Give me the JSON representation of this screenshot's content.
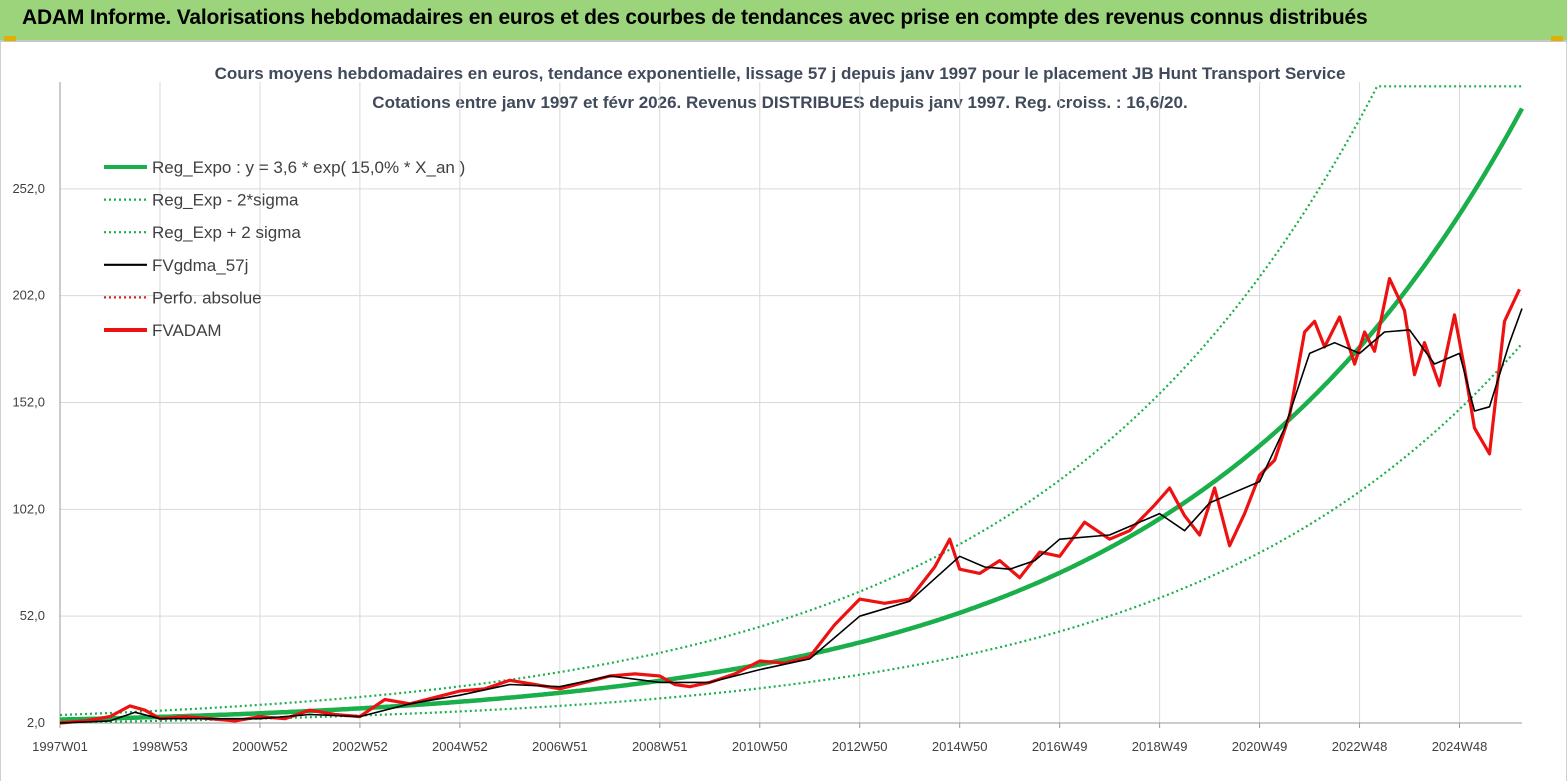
{
  "header": {
    "title": "ADAM Informe. Valorisations hebdomadaires en euros et des courbes de tendances avec prise en compte des revenus connus distribués"
  },
  "colors": {
    "banner": "#9bd47a",
    "regression": "#1aaf4b",
    "band": "#1aaf4b",
    "moving_average": "#000000",
    "perf_absolue": "#d62020",
    "fvadam": "#ee1111",
    "grid": "#d9d9d9"
  },
  "chart_data": {
    "type": "line",
    "title": "Cours moyens hebdomadaires en euros, tendance exponentielle, lissage 57 j depuis janv 1997 pour le placement JB Hunt Transport Service",
    "subtitle": "Cotations entre janv 1997 et févr 2026. Revenus DISTRIBUES depuis janv 1997. Reg. croiss. : 16,6/20.",
    "xlabel": "",
    "ylabel": "",
    "x_ticks": [
      "1997W01",
      "1998W53",
      "2000W52",
      "2002W52",
      "2004W52",
      "2006W51",
      "2008W51",
      "2010W50",
      "2012W50",
      "2014W50",
      "2016W49",
      "2018W49",
      "2020W49",
      "2022W48",
      "2024W48"
    ],
    "x_tick_years": [
      1997.0,
      1999.0,
      2001.0,
      2003.0,
      2005.0,
      2007.0,
      2009.0,
      2011.0,
      2013.0,
      2015.0,
      2017.0,
      2019.0,
      2021.0,
      2023.0,
      2025.0
    ],
    "xlim": [
      1997.0,
      2026.25
    ],
    "y_ticks": [
      "2,0",
      "52,0",
      "102,0",
      "152,0",
      "202,0",
      "252,0"
    ],
    "y_tick_values": [
      2,
      52,
      102,
      152,
      202,
      252
    ],
    "ylim": [
      2,
      302
    ],
    "grid": true,
    "legend_position": "top-left",
    "legend": [
      {
        "label": "Reg_Expo : y = 3,6 * exp( 15,0% *  X_an )",
        "style": "solid-thick",
        "color": "#1aaf4b"
      },
      {
        "label": "Reg_Exp - 2*sigma",
        "style": "dotted",
        "color": "#1aaf4b"
      },
      {
        "label": "Reg_Exp + 2 sigma",
        "style": "dotted",
        "color": "#1aaf4b"
      },
      {
        "label": "FVgdma_57j",
        "style": "solid",
        "color": "#000000"
      },
      {
        "label": "Perfo. absolue",
        "style": "dotted",
        "color": "#d62020"
      },
      {
        "label": "FVADAM",
        "style": "solid-thick",
        "color": "#ee1111"
      }
    ],
    "regression": {
      "a": 3.6,
      "rate": 0.15,
      "lower_factor": 0.62,
      "upper_factor": 1.6,
      "upper_cap": 300
    },
    "series": [
      {
        "name": "FVADAM",
        "x": [
          1997.0,
          1997.5,
          1998.0,
          1998.4,
          1998.7,
          1999.0,
          1999.5,
          2000.0,
          2000.5,
          2001.0,
          2001.5,
          2002.0,
          2002.5,
          2003.0,
          2003.5,
          2004.0,
          2004.5,
          2005.0,
          2005.5,
          2006.0,
          2006.5,
          2007.0,
          2007.5,
          2008.0,
          2008.5,
          2009.0,
          2009.3,
          2009.6,
          2010.0,
          2010.5,
          2011.0,
          2011.5,
          2012.0,
          2012.5,
          2013.0,
          2013.5,
          2014.0,
          2014.5,
          2014.8,
          2015.0,
          2015.4,
          2015.8,
          2016.2,
          2016.6,
          2017.0,
          2017.5,
          2018.0,
          2018.4,
          2018.9,
          2019.2,
          2019.5,
          2019.8,
          2020.1,
          2020.4,
          2020.7,
          2021.0,
          2021.3,
          2021.6,
          2021.9,
          2022.1,
          2022.3,
          2022.6,
          2022.9,
          2023.1,
          2023.3,
          2023.6,
          2023.9,
          2024.1,
          2024.3,
          2024.6,
          2024.9,
          2025.1,
          2025.3,
          2025.6,
          2025.9,
          2026.2
        ],
        "values": [
          2,
          3,
          5,
          10,
          8,
          4,
          5,
          4,
          3,
          5,
          4,
          8,
          6,
          5,
          13,
          11,
          14,
          17,
          18,
          22,
          20,
          18,
          21,
          24,
          25,
          24,
          20,
          19,
          21,
          25,
          31,
          30,
          33,
          48,
          60,
          58,
          60,
          75,
          88,
          74,
          72,
          78,
          70,
          82,
          80,
          96,
          88,
          92,
          104,
          112,
          99,
          90,
          112,
          85,
          100,
          118,
          125,
          146,
          185,
          190,
          178,
          192,
          170,
          185,
          176,
          210,
          195,
          165,
          180,
          160,
          193,
          168,
          140,
          128,
          190,
          205
        ]
      },
      {
        "name": "FVgdma_57j",
        "x": [
          1997.0,
          1998.0,
          1998.5,
          1999.0,
          2000.0,
          2001.0,
          2002.0,
          2003.0,
          2004.0,
          2005.0,
          2006.0,
          2007.0,
          2008.0,
          2009.0,
          2010.0,
          2011.0,
          2012.0,
          2013.0,
          2014.0,
          2015.0,
          2015.5,
          2016.0,
          2016.5,
          2017.0,
          2018.0,
          2019.0,
          2019.5,
          2020.0,
          2020.5,
          2021.0,
          2021.5,
          2022.0,
          2022.5,
          2023.0,
          2023.5,
          2024.0,
          2024.5,
          2025.0,
          2025.3,
          2025.6,
          2026.0,
          2026.25
        ],
        "values": [
          2,
          3,
          7,
          4,
          4,
          4,
          6,
          5,
          11,
          15,
          20,
          19,
          24,
          21,
          21,
          27,
          32,
          52,
          59,
          80,
          75,
          74,
          78,
          88,
          90,
          100,
          92,
          105,
          110,
          115,
          140,
          175,
          180,
          175,
          185,
          186,
          170,
          175,
          148,
          150,
          180,
          196
        ]
      }
    ]
  }
}
